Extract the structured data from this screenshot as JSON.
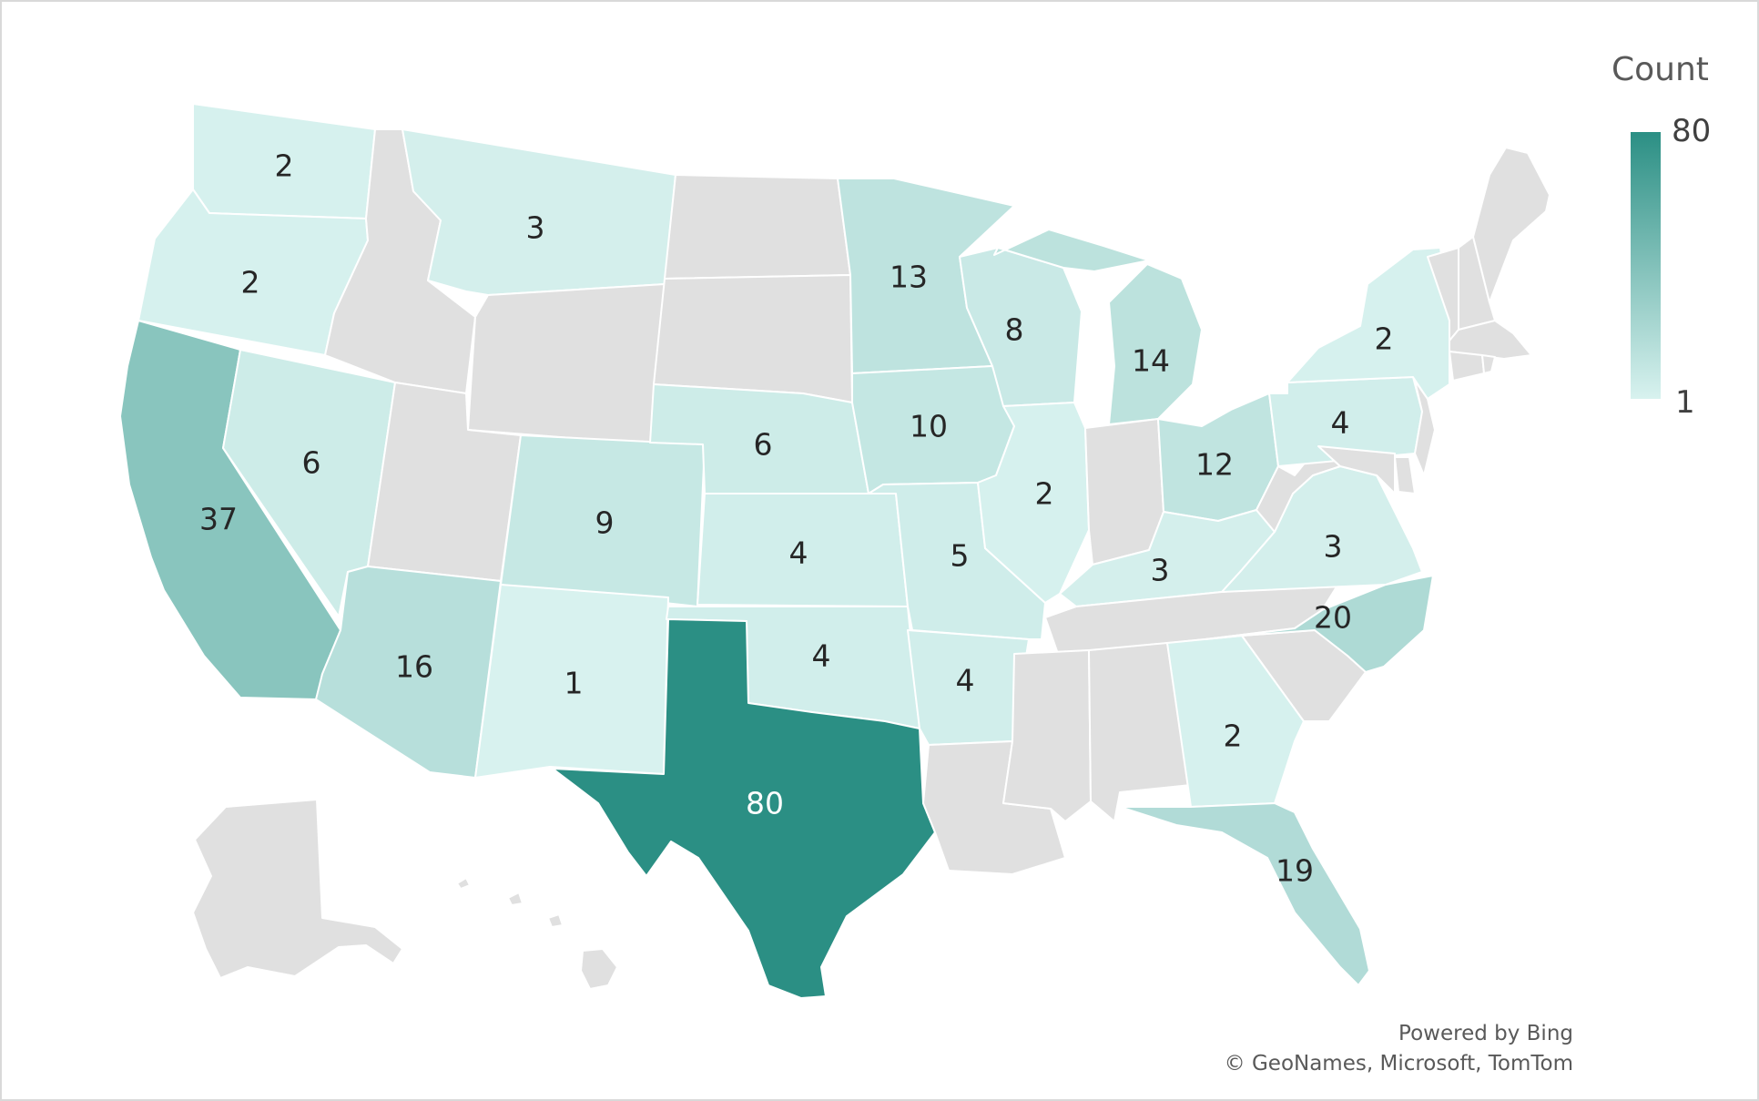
{
  "legend": {
    "title": "Count",
    "max_label": "80",
    "min_label": "1",
    "color_min": "#d8f2ef",
    "color_max": "#2b8f84"
  },
  "no_data_color": "#e0e0e0",
  "credits": {
    "powered_by": "Powered by Bing",
    "copyright": "© GeoNames, Microsoft, TomTom"
  },
  "states": [
    {
      "name": "Washington",
      "value": 2
    },
    {
      "name": "Oregon",
      "value": 2
    },
    {
      "name": "California",
      "value": 37
    },
    {
      "name": "Nevada",
      "value": 6
    },
    {
      "name": "Idaho",
      "value": null
    },
    {
      "name": "Montana",
      "value": 3
    },
    {
      "name": "Wyoming",
      "value": null
    },
    {
      "name": "Utah",
      "value": null
    },
    {
      "name": "Arizona",
      "value": 16
    },
    {
      "name": "Colorado",
      "value": 9
    },
    {
      "name": "New Mexico",
      "value": 1
    },
    {
      "name": "North Dakota",
      "value": null
    },
    {
      "name": "South Dakota",
      "value": null
    },
    {
      "name": "Nebraska",
      "value": 6
    },
    {
      "name": "Kansas",
      "value": 4
    },
    {
      "name": "Oklahoma",
      "value": 4
    },
    {
      "name": "Texas",
      "value": 80
    },
    {
      "name": "Minnesota",
      "value": 13
    },
    {
      "name": "Iowa",
      "value": 10
    },
    {
      "name": "Missouri",
      "value": 5
    },
    {
      "name": "Arkansas",
      "value": 4
    },
    {
      "name": "Louisiana",
      "value": null
    },
    {
      "name": "Wisconsin",
      "value": 8
    },
    {
      "name": "Illinois",
      "value": 2
    },
    {
      "name": "Michigan",
      "value": 14
    },
    {
      "name": "Indiana",
      "value": null
    },
    {
      "name": "Ohio",
      "value": 12
    },
    {
      "name": "Kentucky",
      "value": 3
    },
    {
      "name": "Tennessee",
      "value": null
    },
    {
      "name": "Mississippi",
      "value": null
    },
    {
      "name": "Alabama",
      "value": null
    },
    {
      "name": "Georgia",
      "value": 2
    },
    {
      "name": "Florida",
      "value": 19
    },
    {
      "name": "South Carolina",
      "value": null
    },
    {
      "name": "North Carolina",
      "value": 20
    },
    {
      "name": "Virginia",
      "value": 3
    },
    {
      "name": "West Virginia",
      "value": null
    },
    {
      "name": "Pennsylvania",
      "value": 4
    },
    {
      "name": "New York",
      "value": 2
    },
    {
      "name": "New Jersey",
      "value": null
    },
    {
      "name": "Delaware",
      "value": null
    },
    {
      "name": "Maryland",
      "value": null
    },
    {
      "name": "Vermont",
      "value": null
    },
    {
      "name": "New Hampshire",
      "value": null
    },
    {
      "name": "Maine",
      "value": null
    },
    {
      "name": "Massachusetts",
      "value": null
    },
    {
      "name": "Connecticut",
      "value": null
    },
    {
      "name": "Rhode Island",
      "value": null
    },
    {
      "name": "Alaska",
      "value": null
    },
    {
      "name": "Hawaii",
      "value": null
    }
  ]
}
